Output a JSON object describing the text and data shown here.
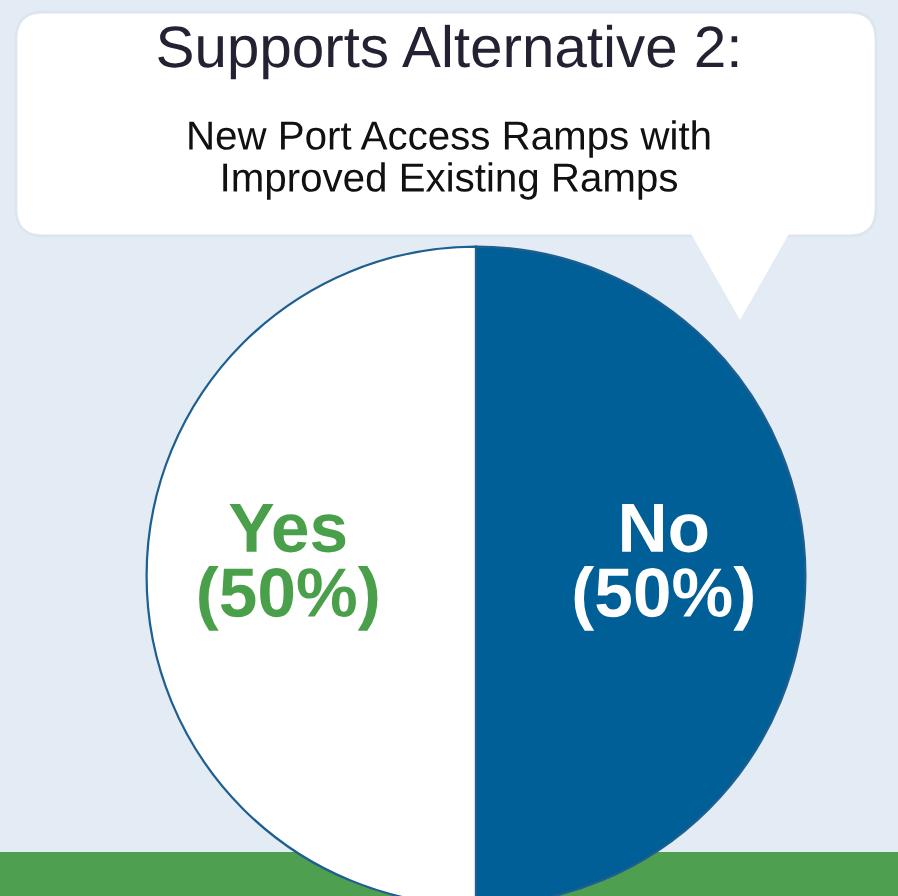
{
  "chart_data": {
    "type": "pie",
    "title": "Supports Alternative 2:",
    "subtitle": "New Port Access Ramps with\nImproved Existing Ramps",
    "categories": [
      "Yes",
      "No"
    ],
    "values": [
      50,
      50
    ],
    "colors": [
      "#ffffff",
      "#005f96"
    ],
    "value_labels": [
      "(50%)",
      "(50%)"
    ],
    "legend": false
  }
}
